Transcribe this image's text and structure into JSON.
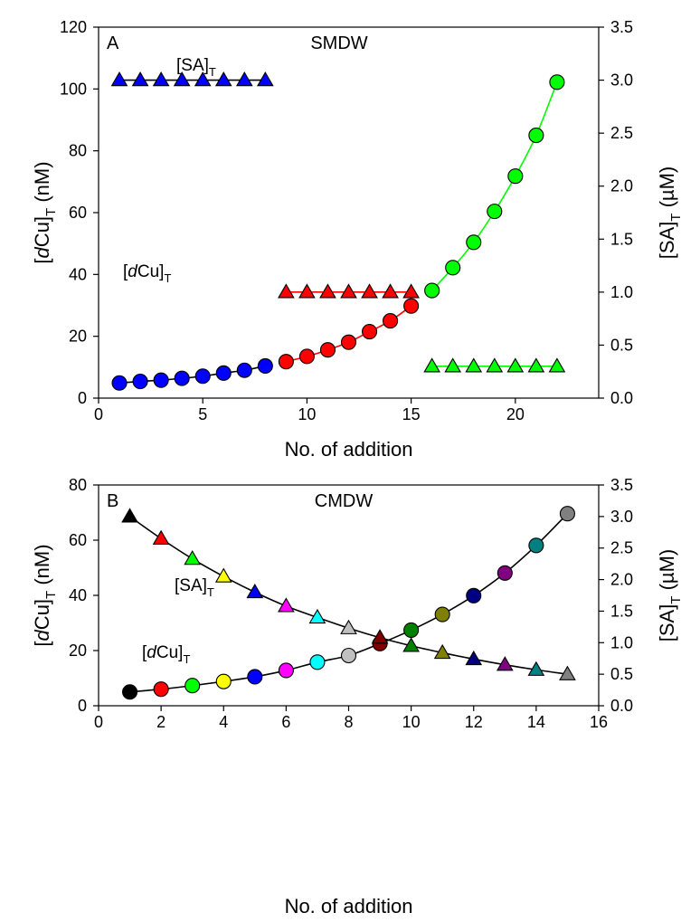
{
  "chart_data": [
    {
      "panel_label": "A",
      "title": "SMDW",
      "type": "scatter",
      "xlabel": "No. of addition",
      "ylabel": {
        "main": "[",
        "italic": "d",
        "rest": "Cu]",
        "sub": "T",
        "unit": " (nM)"
      },
      "y2label": {
        "main": "[SA]",
        "sub": "T",
        "unit": " (µM)"
      },
      "xlim": [
        0,
        24
      ],
      "ylim": [
        0,
        120
      ],
      "y2lim": [
        0,
        3.5
      ],
      "xticks": [
        "0",
        "5",
        "10",
        "15",
        "20"
      ],
      "yticks": [
        "0",
        "20",
        "40",
        "60",
        "80",
        "100",
        "120"
      ],
      "y2ticks": [
        "0.0",
        "0.5",
        "1.0",
        "1.5",
        "2.0",
        "2.5",
        "3.0",
        "3.5"
      ],
      "annotations": {
        "sa": {
          "main": "[SA]",
          "sub": "T"
        },
        "dcu": {
          "main": "[",
          "italic": "d",
          "rest": "Cu]",
          "sub": "T"
        }
      },
      "series": [
        {
          "axis": "left",
          "marker": "circle",
          "line_color": "#000000",
          "color": "#0000ff",
          "x": [
            1,
            2,
            3,
            4,
            5,
            6,
            7,
            8
          ],
          "y": [
            4.9,
            5.4,
            5.8,
            6.4,
            7.1,
            8.1,
            9.0,
            10.4
          ]
        },
        {
          "axis": "left",
          "marker": "circle",
          "line_color": "#ff0000",
          "color": "#ff0000",
          "x": [
            9,
            10,
            11,
            12,
            13,
            14,
            15
          ],
          "y": [
            11.8,
            13.5,
            15.6,
            18.1,
            21.5,
            25.0,
            29.8
          ]
        },
        {
          "axis": "left",
          "marker": "circle",
          "line_color": "#00ff00",
          "color": "#00ff00",
          "x": [
            16,
            17,
            18,
            19,
            20,
            21,
            22
          ],
          "y": [
            34.8,
            42.2,
            50.4,
            60.4,
            71.8,
            85.0,
            102.2
          ]
        },
        {
          "axis": "right",
          "marker": "triangle",
          "line_color": "#000000",
          "color": "#0000ff",
          "x": [
            1,
            2,
            3,
            4,
            5,
            6,
            7,
            8
          ],
          "y": [
            3.0,
            3.0,
            3.0,
            3.0,
            3.0,
            3.0,
            3.0,
            3.0
          ]
        },
        {
          "axis": "right",
          "marker": "triangle",
          "line_color": "#ff0000",
          "color": "#ff0000",
          "x": [
            9,
            10,
            11,
            12,
            13,
            14,
            15
          ],
          "y": [
            1.0,
            1.0,
            1.0,
            1.0,
            1.0,
            1.0,
            1.0
          ]
        },
        {
          "axis": "right",
          "marker": "triangle",
          "line_color": "#00ff00",
          "color": "#00ff00",
          "x": [
            16,
            17,
            18,
            19,
            20,
            21,
            22
          ],
          "y": [
            0.3,
            0.3,
            0.3,
            0.3,
            0.3,
            0.3,
            0.3
          ]
        }
      ]
    },
    {
      "panel_label": "B",
      "title": "CMDW",
      "type": "scatter",
      "xlabel": "No. of addition",
      "ylabel": {
        "main": "[",
        "italic": "d",
        "rest": "Cu]",
        "sub": "T",
        "unit": " (nM)"
      },
      "y2label": {
        "main": "[SA]",
        "sub": "T",
        "unit": " (µM)"
      },
      "xlim": [
        0,
        16
      ],
      "ylim": [
        0,
        80
      ],
      "y2lim": [
        0,
        3.5
      ],
      "xticks": [
        "0",
        "2",
        "4",
        "6",
        "8",
        "10",
        "12",
        "14",
        "16"
      ],
      "yticks": [
        "0",
        "20",
        "40",
        "60",
        "80"
      ],
      "y2ticks": [
        "0.0",
        "0.5",
        "1.0",
        "1.5",
        "2.0",
        "2.5",
        "3.0",
        "3.5"
      ],
      "annotations": {
        "sa": {
          "main": "[SA]",
          "sub": "T"
        },
        "dcu": {
          "main": "[",
          "italic": "d",
          "rest": "Cu]",
          "sub": "T"
        }
      },
      "point_colors": [
        "#000000",
        "#ff0000",
        "#00ff00",
        "#ffff00",
        "#0000ff",
        "#ff00ff",
        "#00ffff",
        "#c0c0c0",
        "#800000",
        "#008000",
        "#808000",
        "#000080",
        "#800080",
        "#008080",
        "#808080"
      ],
      "series": [
        {
          "axis": "left",
          "marker": "circle",
          "line_color": "#000000",
          "x": [
            1,
            2,
            3,
            4,
            5,
            6,
            7,
            8,
            9,
            10,
            11,
            12,
            13,
            14,
            15
          ],
          "y": [
            5.0,
            6.0,
            7.3,
            8.8,
            10.5,
            12.8,
            15.8,
            18.2,
            22.5,
            27.4,
            33.1,
            39.9,
            48.1,
            58.1,
            69.6
          ]
        },
        {
          "axis": "right",
          "marker": "triangle",
          "line_color": "#000000",
          "x": [
            1,
            2,
            3,
            4,
            5,
            6,
            7,
            8,
            9,
            10,
            11,
            12,
            13,
            14,
            15
          ],
          "y": [
            3.0,
            2.65,
            2.33,
            2.05,
            1.8,
            1.58,
            1.4,
            1.23,
            1.08,
            0.95,
            0.84,
            0.74,
            0.65,
            0.57,
            0.5
          ]
        }
      ]
    }
  ]
}
